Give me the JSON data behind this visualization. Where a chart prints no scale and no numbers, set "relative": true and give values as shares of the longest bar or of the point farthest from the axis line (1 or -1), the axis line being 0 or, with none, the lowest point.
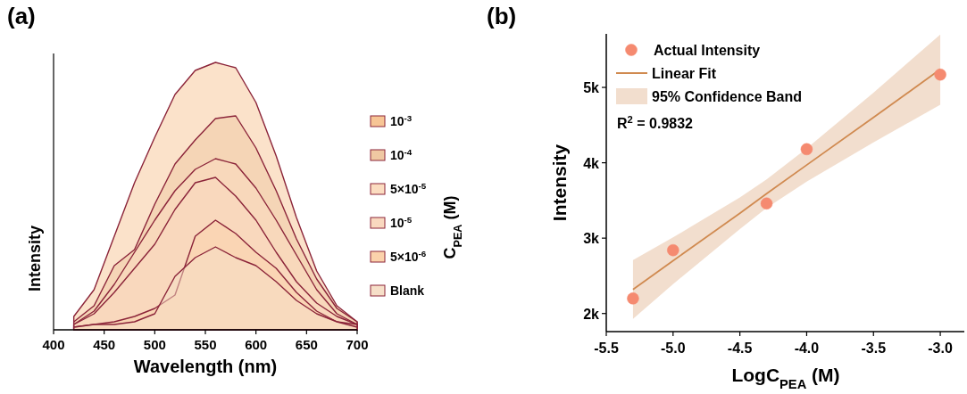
{
  "chart_data": [
    {
      "type": "area",
      "title": "(a)",
      "relative": true,
      "xlabel": "Wavelength (nm)",
      "ylabel": "Intensity",
      "legend_title": "C$_{PEA}$ (M)",
      "legend": "right",
      "xlim": [
        400,
        700
      ],
      "xticks": [
        400,
        450,
        500,
        550,
        600,
        650,
        700
      ],
      "tick_labels": "x",
      "x": [
        420,
        440,
        460,
        480,
        500,
        520,
        540,
        560,
        580,
        600,
        620,
        640,
        660,
        680,
        700
      ],
      "series": [
        {
          "name": "Blank",
          "color": "#f6dfc8",
          "values": [
            0.01,
            0.02,
            0.02,
            0.03,
            0.06,
            0.2,
            0.27,
            0.31,
            0.27,
            0.24,
            0.18,
            0.11,
            0.06,
            0.03,
            0.01
          ]
        },
        {
          "name": "5×10$^{-6}$",
          "color": "#fbd2ab",
          "values": [
            0.01,
            0.02,
            0.03,
            0.05,
            0.08,
            0.13,
            0.35,
            0.41,
            0.36,
            0.29,
            0.23,
            0.14,
            0.07,
            0.03,
            0.02
          ]
        },
        {
          "name": "10$^{-5}$",
          "color": "#f9d8bf",
          "values": [
            0.02,
            0.06,
            0.14,
            0.23,
            0.32,
            0.45,
            0.55,
            0.57,
            0.5,
            0.41,
            0.29,
            0.18,
            0.1,
            0.05,
            0.02
          ]
        },
        {
          "name": "5×10$^{-5}$",
          "color": "#fbdcc0",
          "values": [
            0.02,
            0.07,
            0.17,
            0.29,
            0.41,
            0.52,
            0.6,
            0.64,
            0.62,
            0.53,
            0.41,
            0.28,
            0.15,
            0.06,
            0.02
          ]
        },
        {
          "name": "10$^{-4}$",
          "color": "#efc8a2",
          "values": [
            0.03,
            0.09,
            0.24,
            0.3,
            0.47,
            0.62,
            0.71,
            0.79,
            0.8,
            0.68,
            0.52,
            0.34,
            0.19,
            0.08,
            0.03
          ]
        },
        {
          "name": "10$^{-3}$",
          "color": "#f7c595",
          "values": [
            0.05,
            0.15,
            0.35,
            0.55,
            0.72,
            0.88,
            0.97,
            1.0,
            0.98,
            0.85,
            0.65,
            0.42,
            0.22,
            0.09,
            0.03
          ]
        }
      ]
    },
    {
      "type": "scatter",
      "title": "(b)",
      "xlabel": "LogC$_{PEA}$ (M)",
      "ylabel": "Intensity",
      "xlim": [
        -5.5,
        -2.82
      ],
      "ylim": [
        1760,
        5710
      ],
      "xticks": [
        -5.5,
        {
          "value": -5,
          "label": "-5.0"
        },
        -4.5,
        {
          "value": -4,
          "label": "-4.0"
        },
        -3.5,
        {
          "value": -3,
          "label": "-3.0"
        }
      ],
      "yticks": [
        {
          "value": 2000,
          "label": "2k"
        },
        {
          "value": 3000,
          "label": "3k"
        },
        {
          "value": 4000,
          "label": "4k"
        },
        {
          "value": 5000,
          "label": "5k"
        }
      ],
      "legend": "top left",
      "annotations": [
        "95% Confidence Band",
        "R$^{2}$ = 0.9832"
      ],
      "series": [
        {
          "name": "Actual Intensity",
          "type": "scatter",
          "marker": "circle",
          "color": "#f58a70",
          "x": [
            -5.3,
            -5,
            -4.3,
            -4,
            -3
          ],
          "values": [
            2200,
            2840,
            3460,
            4180,
            5170
          ]
        },
        {
          "name": "Linear Fit",
          "type": "line",
          "color": "#d08a50",
          "x": [
            -5.3,
            -5,
            -4.5,
            -4.3,
            -4,
            -3.5,
            -3
          ],
          "values": [
            2320,
            2700,
            3330,
            3590,
            3970,
            4600,
            5240
          ],
          "lower": [
            1930,
            2390,
            3120,
            3400,
            3750,
            4270,
            4770
          ],
          "upper": [
            2710,
            3010,
            3540,
            3780,
            4190,
            4930,
            5700
          ]
        }
      ]
    }
  ]
}
